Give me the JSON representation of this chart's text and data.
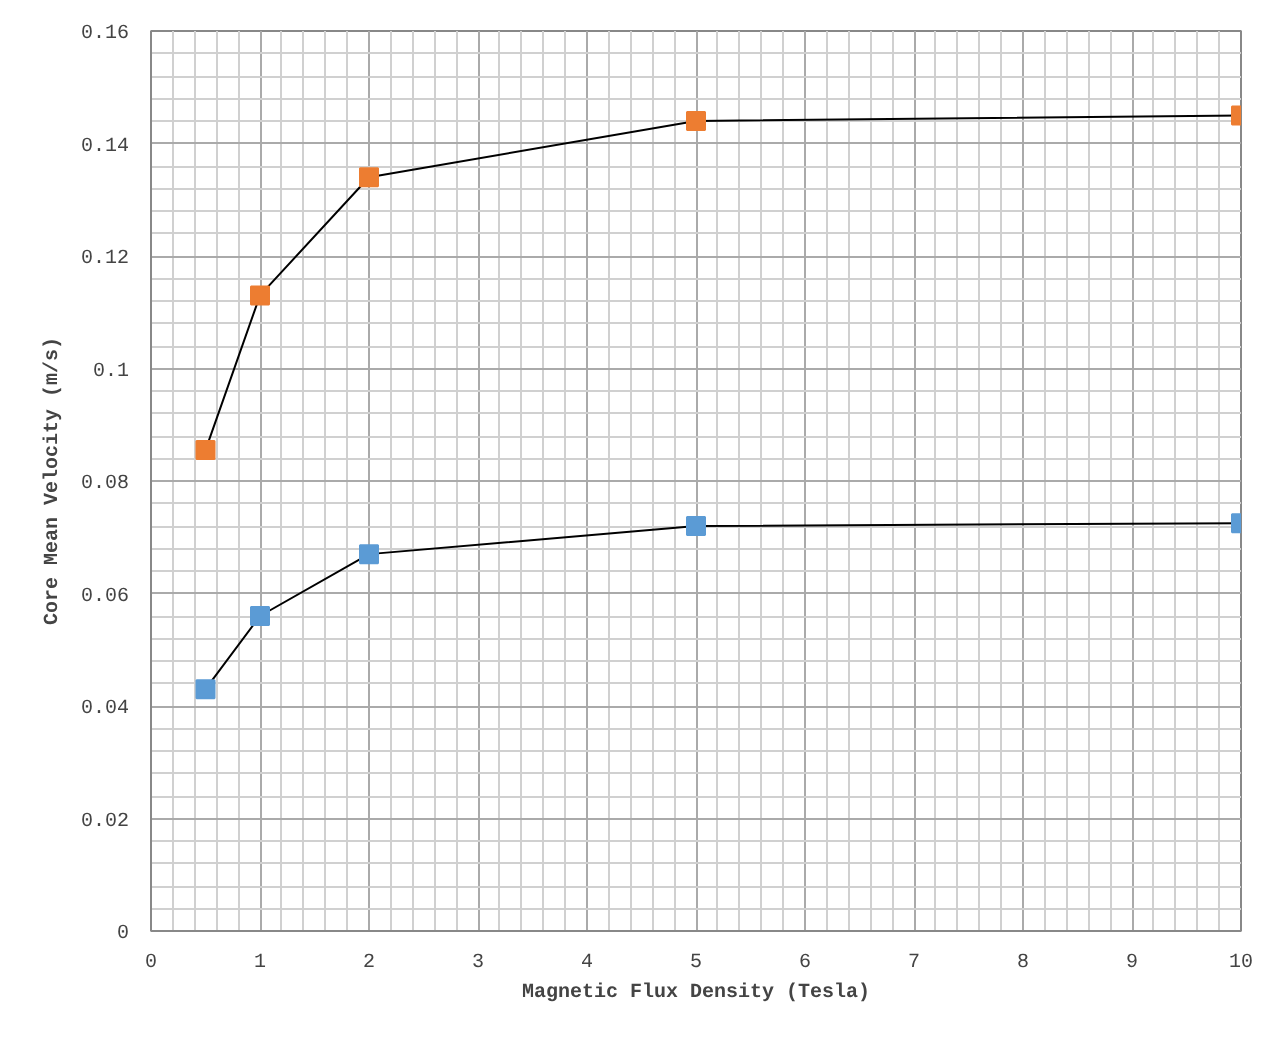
{
  "chart_data": {
    "type": "line",
    "xlabel": "Magnetic Flux Density (Tesla)",
    "ylabel": "Core Mean Velocity (m/s)",
    "x": [
      0.5,
      1,
      2,
      5,
      10
    ],
    "series": [
      {
        "color": "#ed7d31",
        "values": [
          0.0855,
          0.113,
          0.134,
          0.144,
          0.145
        ]
      },
      {
        "color": "#5b9bd5",
        "values": [
          0.043,
          0.056,
          0.067,
          0.072,
          0.0725
        ]
      }
    ],
    "xlim": [
      0,
      10
    ],
    "xticks": [
      0,
      1,
      2,
      3,
      4,
      5,
      6,
      7,
      8,
      9,
      10
    ],
    "ylim": [
      0,
      0.16
    ],
    "yticks": [
      0,
      0.02,
      0.04,
      0.06,
      0.08,
      0.1,
      0.12,
      0.14,
      0.16
    ],
    "grid": true,
    "marker": "square",
    "line_style": "solid"
  }
}
